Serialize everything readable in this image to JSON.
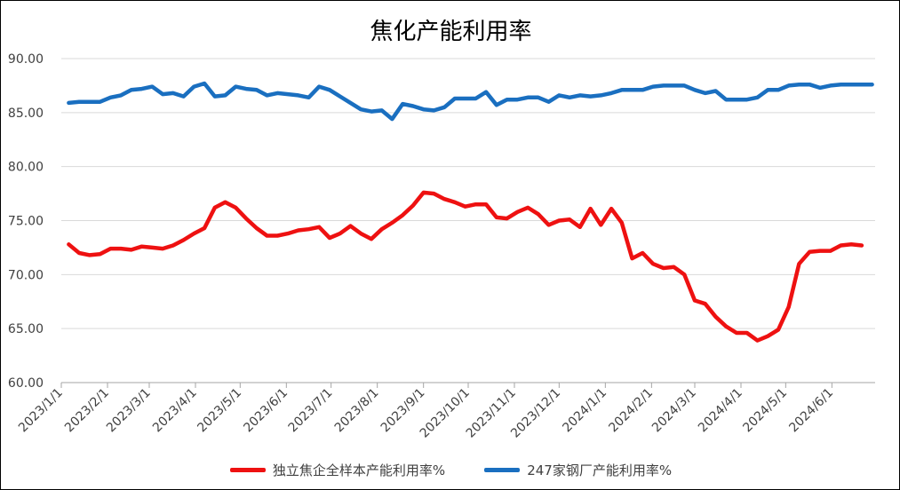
{
  "chart_data": {
    "type": "line",
    "title": "焦化产能利用率",
    "xlabel": "",
    "ylabel": "",
    "ylim": [
      60,
      90
    ],
    "yticks": [
      "60.00",
      "65.00",
      "70.00",
      "75.00",
      "80.00",
      "85.00",
      "90.00"
    ],
    "grid": "horizontal",
    "legend_position": "bottom",
    "x_ticks": [
      "2023/1/1",
      "2023/2/1",
      "2023/3/1",
      "2023/4/1",
      "2023/5/1",
      "2023/6/1",
      "2023/7/1",
      "2023/8/1",
      "2023/9/1",
      "2023/10/1",
      "2023/11/1",
      "2023/12/1",
      "2024/1/1",
      "2024/2/1",
      "2024/3/1",
      "2024/4/1",
      "2024/5/1",
      "2024/6/1"
    ],
    "x_range": [
      "2023/1/1",
      "2024/6/30"
    ],
    "series": [
      {
        "name": "独立焦企全样本产能利用率%",
        "color": "#ee1111",
        "points": [
          [
            "2023/1/6",
            72.8
          ],
          [
            "2023/1/13",
            72.0
          ],
          [
            "2023/1/20",
            71.8
          ],
          [
            "2023/1/27",
            71.9
          ],
          [
            "2023/2/3",
            72.4
          ],
          [
            "2023/2/10",
            72.4
          ],
          [
            "2023/2/17",
            72.3
          ],
          [
            "2023/2/24",
            72.6
          ],
          [
            "2023/3/3",
            72.5
          ],
          [
            "2023/3/10",
            72.4
          ],
          [
            "2023/3/17",
            72.7
          ],
          [
            "2023/3/24",
            73.2
          ],
          [
            "2023/3/31",
            73.8
          ],
          [
            "2023/4/7",
            74.3
          ],
          [
            "2023/4/14",
            76.2
          ],
          [
            "2023/4/21",
            76.7
          ],
          [
            "2023/4/28",
            76.2
          ],
          [
            "2023/5/5",
            75.2
          ],
          [
            "2023/5/12",
            74.3
          ],
          [
            "2023/5/19",
            73.6
          ],
          [
            "2023/5/26",
            73.6
          ],
          [
            "2023/6/2",
            73.8
          ],
          [
            "2023/6/9",
            74.1
          ],
          [
            "2023/6/16",
            74.2
          ],
          [
            "2023/6/23",
            74.4
          ],
          [
            "2023/6/30",
            73.4
          ],
          [
            "2023/7/7",
            73.8
          ],
          [
            "2023/7/14",
            74.5
          ],
          [
            "2023/7/21",
            73.8
          ],
          [
            "2023/7/28",
            73.3
          ],
          [
            "2023/8/4",
            74.2
          ],
          [
            "2023/8/11",
            74.8
          ],
          [
            "2023/8/18",
            75.5
          ],
          [
            "2023/8/25",
            76.4
          ],
          [
            "2023/9/1",
            77.6
          ],
          [
            "2023/9/8",
            77.5
          ],
          [
            "2023/9/15",
            77.0
          ],
          [
            "2023/9/22",
            76.7
          ],
          [
            "2023/9/29",
            76.3
          ],
          [
            "2023/10/6",
            76.5
          ],
          [
            "2023/10/13",
            76.5
          ],
          [
            "2023/10/20",
            75.3
          ],
          [
            "2023/10/27",
            75.2
          ],
          [
            "2023/11/3",
            75.8
          ],
          [
            "2023/11/10",
            76.2
          ],
          [
            "2023/11/17",
            75.6
          ],
          [
            "2023/11/24",
            74.6
          ],
          [
            "2023/12/1",
            75.0
          ],
          [
            "2023/12/8",
            75.1
          ],
          [
            "2023/12/15",
            74.4
          ],
          [
            "2023/12/22",
            76.1
          ],
          [
            "2023/12/29",
            74.6
          ],
          [
            "2024/1/5",
            76.1
          ],
          [
            "2024/1/12",
            74.8
          ],
          [
            "2024/1/19",
            71.5
          ],
          [
            "2024/1/26",
            72.0
          ],
          [
            "2024/2/2",
            71.0
          ],
          [
            "2024/2/9",
            70.6
          ],
          [
            "2024/2/16",
            70.7
          ],
          [
            "2024/2/23",
            70.0
          ],
          [
            "2024/3/1",
            67.6
          ],
          [
            "2024/3/8",
            67.3
          ],
          [
            "2024/3/15",
            66.1
          ],
          [
            "2024/3/22",
            65.2
          ],
          [
            "2024/3/29",
            64.6
          ],
          [
            "2024/4/5",
            64.6
          ],
          [
            "2024/4/12",
            63.9
          ],
          [
            "2024/4/19",
            64.3
          ],
          [
            "2024/4/26",
            64.9
          ],
          [
            "2024/5/3",
            67.0
          ],
          [
            "2024/5/10",
            71.0
          ],
          [
            "2024/5/17",
            72.1
          ],
          [
            "2024/5/24",
            72.2
          ],
          [
            "2024/5/31",
            72.2
          ],
          [
            "2024/6/7",
            72.7
          ],
          [
            "2024/6/14",
            72.8
          ],
          [
            "2024/6/21",
            72.7
          ]
        ]
      },
      {
        "name": "247家钢厂产能利用率%",
        "color": "#1a6fc0",
        "points": [
          [
            "2023/1/6",
            85.9
          ],
          [
            "2023/1/13",
            86.0
          ],
          [
            "2023/1/20",
            86.0
          ],
          [
            "2023/1/27",
            86.0
          ],
          [
            "2023/2/3",
            86.4
          ],
          [
            "2023/2/10",
            86.6
          ],
          [
            "2023/2/17",
            87.1
          ],
          [
            "2023/2/24",
            87.2
          ],
          [
            "2023/3/3",
            87.4
          ],
          [
            "2023/3/10",
            86.7
          ],
          [
            "2023/3/17",
            86.8
          ],
          [
            "2023/3/24",
            86.5
          ],
          [
            "2023/3/31",
            87.4
          ],
          [
            "2023/4/7",
            87.7
          ],
          [
            "2023/4/14",
            86.5
          ],
          [
            "2023/4/21",
            86.6
          ],
          [
            "2023/4/28",
            87.4
          ],
          [
            "2023/5/5",
            87.2
          ],
          [
            "2023/5/12",
            87.1
          ],
          [
            "2023/5/19",
            86.6
          ],
          [
            "2023/5/26",
            86.8
          ],
          [
            "2023/6/2",
            86.7
          ],
          [
            "2023/6/9",
            86.6
          ],
          [
            "2023/6/16",
            86.4
          ],
          [
            "2023/6/23",
            87.4
          ],
          [
            "2023/6/30",
            87.1
          ],
          [
            "2023/7/7",
            86.5
          ],
          [
            "2023/7/14",
            85.9
          ],
          [
            "2023/7/21",
            85.3
          ],
          [
            "2023/7/28",
            85.1
          ],
          [
            "2023/8/4",
            85.2
          ],
          [
            "2023/8/11",
            84.4
          ],
          [
            "2023/8/18",
            85.8
          ],
          [
            "2023/8/25",
            85.6
          ],
          [
            "2023/9/1",
            85.3
          ],
          [
            "2023/9/8",
            85.2
          ],
          [
            "2023/9/15",
            85.5
          ],
          [
            "2023/9/22",
            86.3
          ],
          [
            "2023/9/29",
            86.3
          ],
          [
            "2023/10/6",
            86.3
          ],
          [
            "2023/10/13",
            86.9
          ],
          [
            "2023/10/20",
            85.7
          ],
          [
            "2023/10/27",
            86.2
          ],
          [
            "2023/11/3",
            86.2
          ],
          [
            "2023/11/10",
            86.4
          ],
          [
            "2023/11/17",
            86.4
          ],
          [
            "2023/11/24",
            86.0
          ],
          [
            "2023/12/1",
            86.6
          ],
          [
            "2023/12/8",
            86.4
          ],
          [
            "2023/12/15",
            86.6
          ],
          [
            "2023/12/22",
            86.5
          ],
          [
            "2023/12/29",
            86.6
          ],
          [
            "2024/1/5",
            86.8
          ],
          [
            "2024/1/12",
            87.1
          ],
          [
            "2024/1/19",
            87.1
          ],
          [
            "2024/1/26",
            87.1
          ],
          [
            "2024/2/2",
            87.4
          ],
          [
            "2024/2/9",
            87.5
          ],
          [
            "2024/2/16",
            87.5
          ],
          [
            "2024/2/23",
            87.5
          ],
          [
            "2024/3/1",
            87.1
          ],
          [
            "2024/3/8",
            86.8
          ],
          [
            "2024/3/15",
            87.0
          ],
          [
            "2024/3/22",
            86.2
          ],
          [
            "2024/3/29",
            86.2
          ],
          [
            "2024/4/5",
            86.2
          ],
          [
            "2024/4/12",
            86.4
          ],
          [
            "2024/4/19",
            87.1
          ],
          [
            "2024/4/26",
            87.1
          ],
          [
            "2024/5/3",
            87.5
          ],
          [
            "2024/5/10",
            87.6
          ],
          [
            "2024/5/17",
            87.6
          ],
          [
            "2024/5/24",
            87.3
          ],
          [
            "2024/5/31",
            87.5
          ],
          [
            "2024/6/7",
            87.6
          ],
          [
            "2024/6/14",
            87.6
          ],
          [
            "2024/6/21",
            87.6
          ],
          [
            "2024/6/28",
            87.6
          ]
        ]
      }
    ]
  }
}
